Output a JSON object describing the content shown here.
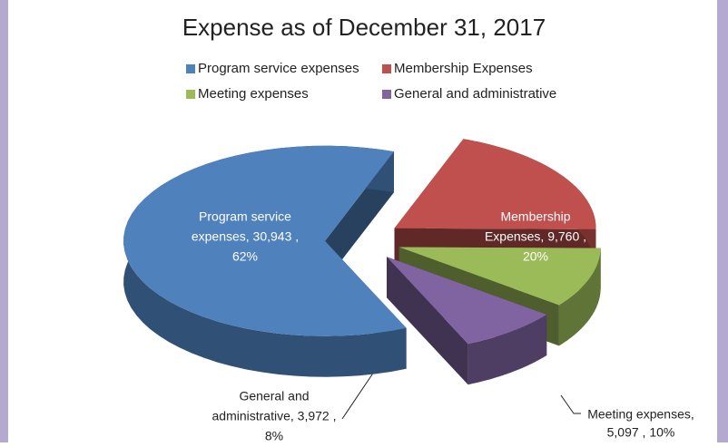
{
  "chart_data": {
    "type": "pie",
    "title": "Expense as of December 31, 2017",
    "categories": [
      "Membership Expenses",
      "Meeting expenses",
      "General and administrative",
      "Program service expenses"
    ],
    "values": [
      9760,
      5097,
      3972,
      30943
    ],
    "percents": [
      20,
      10,
      8,
      62
    ],
    "data_labels": [
      [
        "Membership",
        "Expenses, 9,760 ,",
        "20%"
      ],
      [
        "Meeting expenses,",
        "5,097 , 10%"
      ],
      [
        "General and",
        "administrative, 3,972 ,",
        "8%"
      ],
      [
        "Program service",
        "expenses, 30,943 ,",
        "62%"
      ]
    ],
    "colors": [
      "#c0504d",
      "#9bbb59",
      "#8064a2",
      "#4f81bd"
    ],
    "legend_order": [
      3,
      0,
      1,
      2
    ]
  }
}
